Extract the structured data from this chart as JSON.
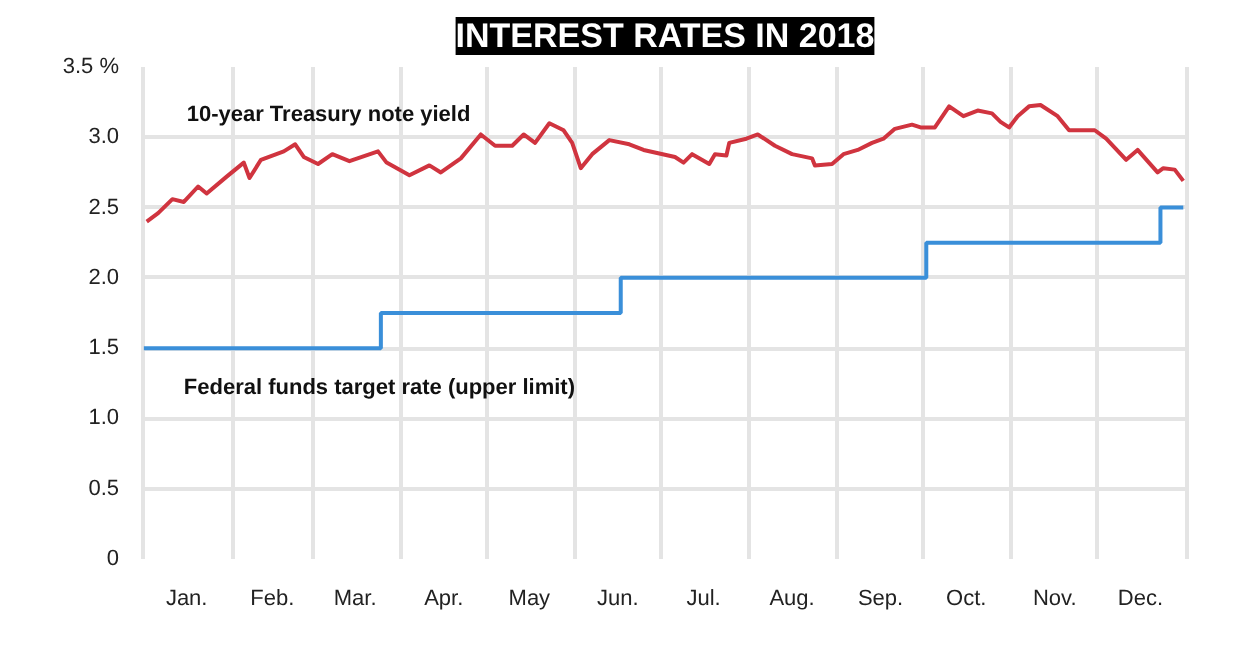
{
  "chart_data": {
    "type": "line",
    "title": "INTEREST RATES IN 2018",
    "xlim": [
      "2017-12-31",
      "2019-01-02"
    ],
    "xticks": [
      {
        "value": "2018-01-01",
        "label": null
      },
      {
        "value": "2018-01-16",
        "label": "Jan."
      },
      {
        "value": "2018-02-01",
        "label": null
      },
      {
        "value": "2018-02-15",
        "label": "Feb."
      },
      {
        "value": "2018-03-01",
        "label": null
      },
      {
        "value": "2018-03-16",
        "label": "Mar."
      },
      {
        "value": "2018-04-01",
        "label": null
      },
      {
        "value": "2018-04-16",
        "label": "Apr."
      },
      {
        "value": "2018-05-01",
        "label": null
      },
      {
        "value": "2018-05-16",
        "label": "May"
      },
      {
        "value": "2018-06-01",
        "label": null
      },
      {
        "value": "2018-06-16",
        "label": "Jun."
      },
      {
        "value": "2018-07-01",
        "label": null
      },
      {
        "value": "2018-07-16",
        "label": "Jul."
      },
      {
        "value": "2018-08-01",
        "label": null
      },
      {
        "value": "2018-08-16",
        "label": "Aug."
      },
      {
        "value": "2018-09-01",
        "label": null
      },
      {
        "value": "2018-09-16",
        "label": "Sep."
      },
      {
        "value": "2018-10-01",
        "label": null
      },
      {
        "value": "2018-10-16",
        "label": "Oct."
      },
      {
        "value": "2018-11-01",
        "label": null
      },
      {
        "value": "2018-11-16",
        "label": "Nov."
      },
      {
        "value": "2018-12-01",
        "label": null
      },
      {
        "value": "2018-12-16",
        "label": "Dec."
      },
      {
        "value": "2019-01-01",
        "label": null
      }
    ],
    "ylim": [
      0,
      3.5
    ],
    "yticks": [
      0,
      0.5,
      {
        "value": 1,
        "label": "1.0"
      },
      1.5,
      {
        "value": 2,
        "label": "2.0"
      },
      2.5,
      {
        "value": 3,
        "label": "3.0"
      },
      {
        "value": 3.5,
        "label": "3.5 %"
      }
    ],
    "grid": true,
    "series": [
      {
        "name": "10-year Treasury note yield",
        "color": "#d0343f",
        "x": [
          "2018-01-02",
          "2018-01-06",
          "2018-01-11",
          "2018-01-15",
          "2018-01-20",
          "2018-01-23",
          "2018-01-30",
          "2018-02-05",
          "2018-02-07",
          "2018-02-11",
          "2018-02-19",
          "2018-02-23",
          "2018-02-26",
          "2018-03-03",
          "2018-03-08",
          "2018-03-14",
          "2018-03-24",
          "2018-03-27",
          "2018-04-04",
          "2018-04-11",
          "2018-04-15",
          "2018-04-22",
          "2018-04-29",
          "2018-05-04",
          "2018-05-10",
          "2018-05-14",
          "2018-05-18",
          "2018-05-23",
          "2018-05-28",
          "2018-05-31",
          "2018-06-03",
          "2018-06-07",
          "2018-06-13",
          "2018-06-20",
          "2018-06-25",
          "2018-07-06",
          "2018-07-09",
          "2018-07-12",
          "2018-07-18",
          "2018-07-20",
          "2018-07-24",
          "2018-07-25",
          "2018-07-31",
          "2018-08-04",
          "2018-08-10",
          "2018-08-16",
          "2018-08-23",
          "2018-08-24",
          "2018-08-30",
          "2018-09-03",
          "2018-09-08",
          "2018-09-13",
          "2018-09-17",
          "2018-09-21",
          "2018-09-27",
          "2018-09-30",
          "2018-10-05",
          "2018-10-10",
          "2018-10-15",
          "2018-10-20",
          "2018-10-25",
          "2018-10-28",
          "2018-10-31",
          "2018-11-03",
          "2018-11-07",
          "2018-11-11",
          "2018-11-17",
          "2018-11-21",
          "2018-11-30",
          "2018-12-04",
          "2018-12-11",
          "2018-12-15",
          "2018-12-22",
          "2018-12-24",
          "2018-12-28",
          "2018-12-31"
        ],
        "values": [
          2.4,
          2.46,
          2.56,
          2.54,
          2.65,
          2.6,
          2.72,
          2.82,
          2.71,
          2.84,
          2.9,
          2.95,
          2.86,
          2.81,
          2.88,
          2.83,
          2.9,
          2.82,
          2.73,
          2.8,
          2.75,
          2.85,
          3.02,
          2.94,
          2.94,
          3.02,
          2.96,
          3.1,
          3.05,
          2.96,
          2.78,
          2.88,
          2.98,
          2.95,
          2.91,
          2.86,
          2.82,
          2.88,
          2.81,
          2.88,
          2.87,
          2.96,
          2.99,
          3.02,
          2.94,
          2.88,
          2.85,
          2.8,
          2.81,
          2.88,
          2.91,
          2.96,
          2.99,
          3.06,
          3.09,
          3.07,
          3.07,
          3.22,
          3.15,
          3.19,
          3.17,
          3.11,
          3.07,
          3.15,
          3.22,
          3.23,
          3.15,
          3.05,
          3.05,
          2.99,
          2.84,
          2.91,
          2.75,
          2.78,
          2.77,
          2.69
        ]
      },
      {
        "name": "Federal funds target rate (upper limit)",
        "color": "#3a8fd9",
        "type": "step",
        "x": [
          "2018-01-01",
          "2018-03-25",
          "2018-06-17",
          "2018-10-02",
          "2018-12-23",
          "2018-12-31"
        ],
        "values": [
          1.5,
          1.75,
          2.0,
          2.25,
          2.5,
          2.5
        ]
      }
    ]
  }
}
